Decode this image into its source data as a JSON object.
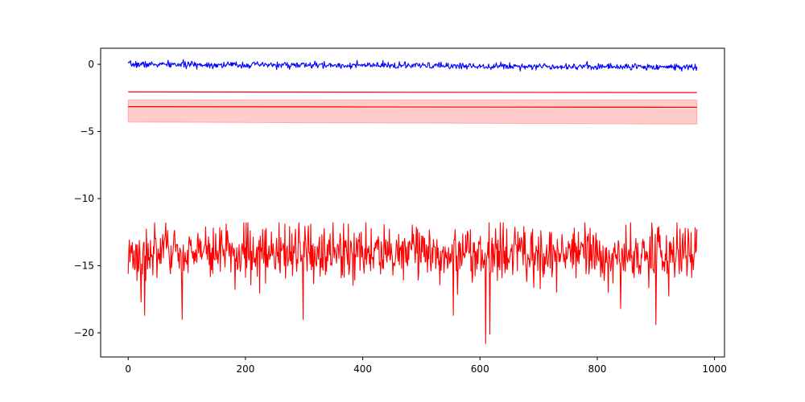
{
  "chart_data": {
    "type": "line",
    "title": "",
    "xlabel": "",
    "ylabel": "",
    "xlim": [
      -47,
      1017
    ],
    "ylim": [
      -21.8,
      1.2
    ],
    "x_ticks": [
      0,
      200,
      400,
      600,
      800,
      1000
    ],
    "x_tick_labels": [
      "0",
      "200",
      "400",
      "600",
      "800",
      "1000"
    ],
    "y_ticks": [
      0,
      -5,
      -10,
      -15,
      -20
    ],
    "y_tick_labels": [
      "0",
      "−5",
      "−10",
      "−15",
      "−20"
    ],
    "grid": false,
    "legend": "none",
    "n_points": 970,
    "series": [
      {
        "style": "noisy-line",
        "color": "#0000ff",
        "x_start": 0,
        "x_end": 970,
        "mean_start": 0.0,
        "mean_end": -0.2,
        "spread": 0.12,
        "seed": 7
      },
      {
        "style": "straight-line",
        "color": "#ff0000",
        "x": [
          0,
          970
        ],
        "y": [
          -2.05,
          -2.1
        ]
      },
      {
        "style": "band-with-center-line",
        "color": "#ff0000",
        "fill_color": "#ffcccc",
        "x": [
          0,
          970
        ],
        "center": [
          -3.15,
          -3.2
        ],
        "lower": [
          -4.3,
          -4.45
        ],
        "upper": [
          -2.65,
          -2.65
        ]
      },
      {
        "style": "noisy-line",
        "color": "#ff0000",
        "x_start": 0,
        "x_end": 970,
        "mean_start": -14.0,
        "mean_end": -14.2,
        "spread": 1.0,
        "min": -20.8,
        "max": -11.8,
        "seed": 3,
        "spikes": [
          {
            "x": 22,
            "y": -17.7
          },
          {
            "x": 28,
            "y": -18.7
          },
          {
            "x": 92,
            "y": -19.0
          },
          {
            "x": 298,
            "y": -19.0
          },
          {
            "x": 555,
            "y": -18.7
          },
          {
            "x": 610,
            "y": -20.8
          },
          {
            "x": 617,
            "y": -20.1
          },
          {
            "x": 840,
            "y": -18.2
          },
          {
            "x": 900,
            "y": -19.4
          },
          {
            "x": 201,
            "y": -11.8
          },
          {
            "x": 375,
            "y": -11.9
          },
          {
            "x": 950,
            "y": -12.2
          }
        ]
      }
    ]
  }
}
